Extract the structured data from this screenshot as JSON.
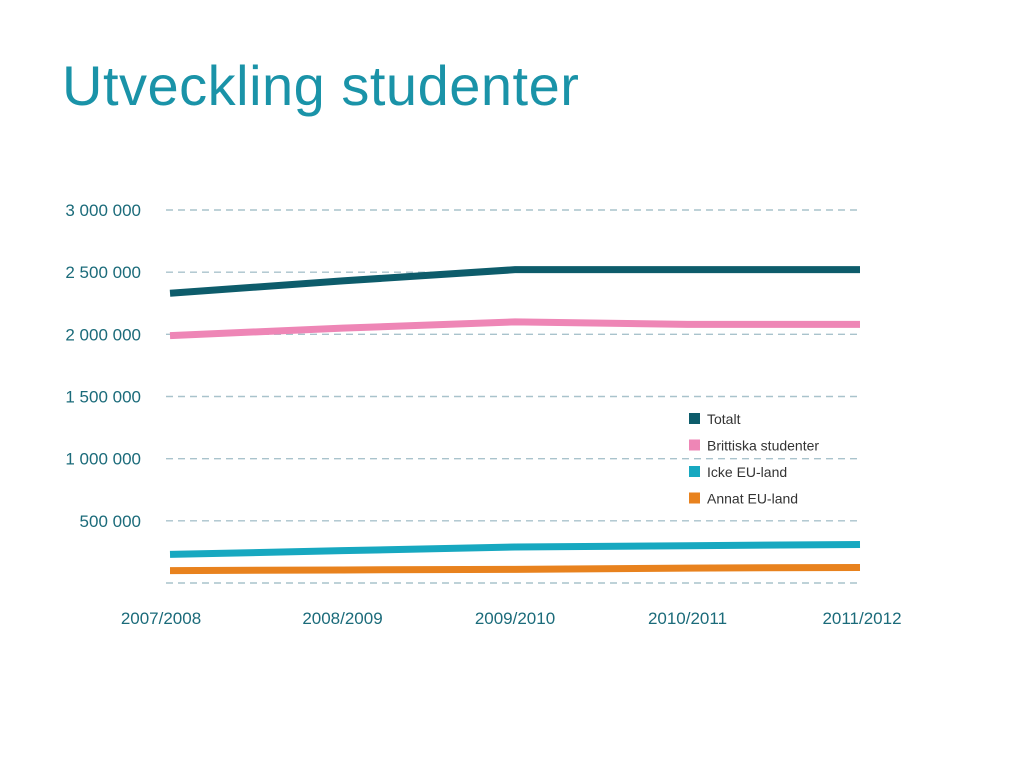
{
  "slide": {
    "title": "Utveckling studenter"
  },
  "chart_data": {
    "type": "line",
    "categories": [
      "2007/2008",
      "2008/2009",
      "2009/2010",
      "2010/2011",
      "2011/2012"
    ],
    "ylim": [
      0,
      3000000
    ],
    "yticks": [
      500000,
      1000000,
      1500000,
      2000000,
      2500000,
      3000000
    ],
    "ytick_labels": [
      "500 000",
      "1 000 000",
      "1 500 000",
      "2 000 000",
      "2 500 000",
      "3 000 000"
    ],
    "grid": true,
    "legend_position": "right",
    "series": [
      {
        "name": "Totalt",
        "color": "#0d5c6b",
        "values": [
          2330000,
          2430000,
          2520000,
          2520000,
          2520000
        ]
      },
      {
        "name": "Brittiska studenter",
        "color": "#ee86b6",
        "values": [
          1990000,
          2050000,
          2100000,
          2080000,
          2080000
        ]
      },
      {
        "name": "Icke EU-land",
        "color": "#17a8c0",
        "values": [
          230000,
          260000,
          290000,
          300000,
          310000
        ]
      },
      {
        "name": "Annat EU-land",
        "color": "#e8821e",
        "values": [
          100000,
          105000,
          110000,
          120000,
          125000
        ]
      }
    ]
  }
}
